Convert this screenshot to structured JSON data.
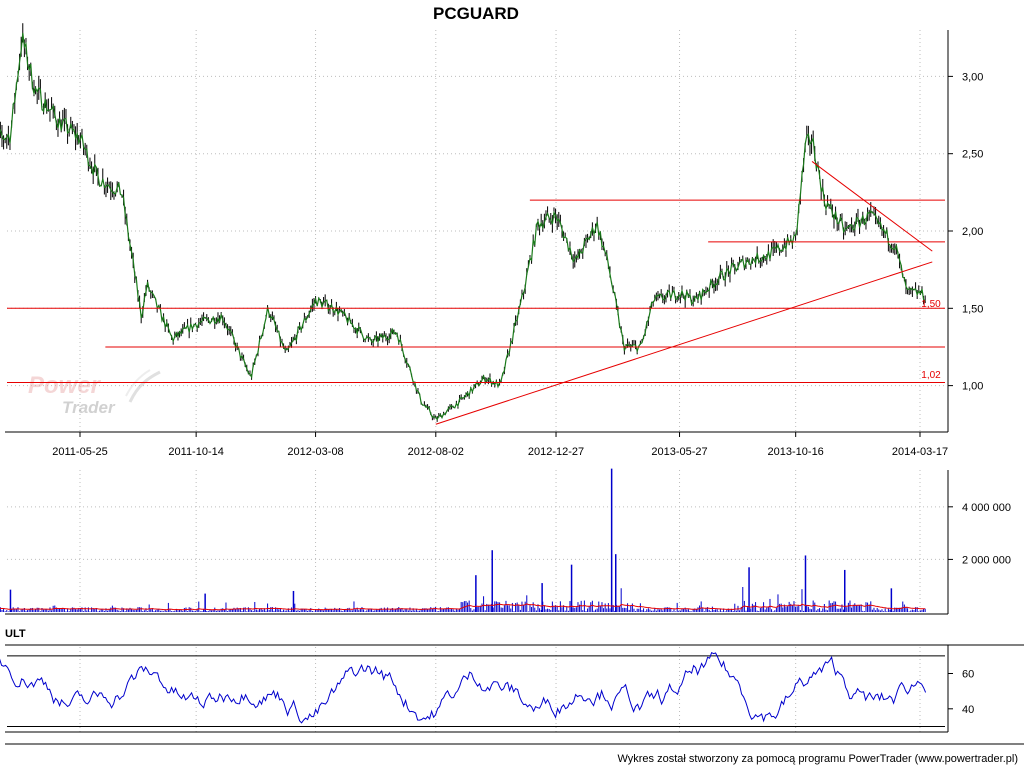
{
  "chart_data": [
    {
      "type": "line",
      "name": "price",
      "title": "PCGUARD",
      "x_ticks": [
        "2011-05-25",
        "2011-10-14",
        "2012-03-08",
        "2012-08-02",
        "2012-12-27",
        "2013-05-27",
        "2013-10-16",
        "2014-03-17"
      ],
      "y_ticks": [
        "1,00",
        "1,50",
        "2,00",
        "2,50",
        "3,00"
      ],
      "ylim": [
        0.7,
        3.3
      ],
      "series": [
        {
          "x": [
            "2011-02-01",
            "2011-03-01",
            "2011-03-15",
            "2011-04-01",
            "2011-05-01",
            "2011-05-25",
            "2011-06-15",
            "2011-07-15",
            "2011-08-08",
            "2011-08-15",
            "2011-09-15",
            "2011-10-14",
            "2011-11-15",
            "2011-12-20",
            "2012-01-10",
            "2012-02-01",
            "2012-03-08",
            "2012-04-01",
            "2012-05-15",
            "2012-06-15",
            "2012-07-15",
            "2012-08-02",
            "2012-09-01",
            "2012-10-01",
            "2012-10-20",
            "2012-11-15",
            "2012-12-05",
            "2012-12-27",
            "2013-01-20",
            "2013-02-15",
            "2013-03-01",
            "2013-03-20",
            "2013-04-10",
            "2013-04-25",
            "2013-05-27",
            "2013-06-15",
            "2013-07-15",
            "2013-08-15",
            "2013-09-15",
            "2013-10-16",
            "2013-10-28",
            "2013-11-05",
            "2013-11-20",
            "2013-12-15",
            "2014-01-15",
            "2014-02-15",
            "2014-03-01",
            "2014-03-17",
            "2014-03-25"
          ],
          "values": [
            2.58,
            2.62,
            3.25,
            2.9,
            2.7,
            2.6,
            2.35,
            2.25,
            1.45,
            1.65,
            1.3,
            1.4,
            1.45,
            1.05,
            1.5,
            1.2,
            1.55,
            1.5,
            1.28,
            1.35,
            0.9,
            0.78,
            0.9,
            1.05,
            1.0,
            1.55,
            2.05,
            2.1,
            1.8,
            2.05,
            1.78,
            1.25,
            1.25,
            1.55,
            1.6,
            1.55,
            1.7,
            1.8,
            1.85,
            1.95,
            2.55,
            2.6,
            2.2,
            2.0,
            2.1,
            1.9,
            1.6,
            1.6,
            1.57
          ]
        }
      ],
      "hlines": [
        {
          "value": 2.2,
          "x_start": "2012-11-25",
          "x_end": "2014-03-25"
        },
        {
          "value": 1.93,
          "x_start": "2013-07-01",
          "x_end": "2014-03-25"
        },
        {
          "value": 1.5,
          "x_start": "2011-02-01",
          "x_end": "2014-03-25"
        },
        {
          "value": 1.25,
          "x_start": "2011-06-25",
          "x_end": "2014-03-25"
        },
        {
          "value": 1.02,
          "x_start": "2011-02-01",
          "x_end": "2014-03-25"
        }
      ],
      "trendlines": [
        {
          "from": [
            "2012-08-02",
            0.75
          ],
          "to": [
            "2014-04-01",
            1.8
          ]
        },
        {
          "from": [
            "2013-11-05",
            2.45
          ],
          "to": [
            "2014-04-01",
            1.87
          ]
        }
      ],
      "annotations": [
        "1,50",
        "1,02"
      ],
      "colors": {
        "price": "#1a7a1a",
        "lines": "#e60000"
      }
    },
    {
      "type": "bar",
      "name": "volume",
      "y_ticks": [
        "2 000 000",
        "4 000 000"
      ],
      "ylim": [
        0,
        5400000
      ],
      "spikes": [
        {
          "x": "2011-03-01",
          "value": 850000
        },
        {
          "x": "2011-10-25",
          "value": 700000
        },
        {
          "x": "2012-02-10",
          "value": 800000
        },
        {
          "x": "2012-09-20",
          "value": 1400000
        },
        {
          "x": "2012-10-10",
          "value": 2350000
        },
        {
          "x": "2012-12-10",
          "value": 1100000
        },
        {
          "x": "2013-01-15",
          "value": 1800000
        },
        {
          "x": "2013-03-05",
          "value": 5450000
        },
        {
          "x": "2013-03-10",
          "value": 2200000
        },
        {
          "x": "2013-08-20",
          "value": 1700000
        },
        {
          "x": "2013-10-28",
          "value": 2150000
        },
        {
          "x": "2013-12-15",
          "value": 1600000
        },
        {
          "x": "2014-02-10",
          "value": 900000
        }
      ],
      "colors": {
        "bars": "#0000cc",
        "average": "#e60000"
      }
    },
    {
      "type": "line",
      "name": "ultimate oscillator",
      "title": "ULT",
      "y_ticks": [
        "40",
        "60"
      ],
      "ylim": [
        28,
        75
      ],
      "levels": [
        30,
        70
      ],
      "colors": {
        "line": "#0000cc",
        "levels": "#000000"
      }
    }
  ],
  "watermark": {
    "word1": "Power",
    "word2": "Trader"
  },
  "footer": "Wykres został stworzony za pomocą programu PowerTrader (www.powertrader.pl)"
}
